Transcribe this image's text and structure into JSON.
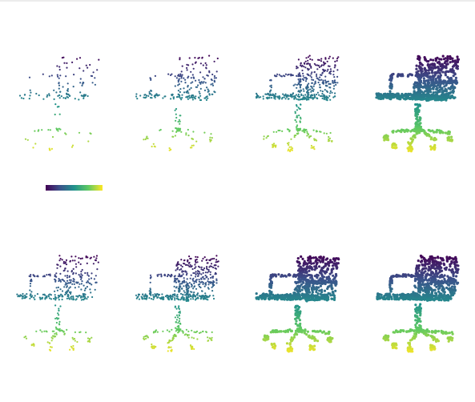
{
  "figure": {
    "description_free": true,
    "colormap": "viridis",
    "colormap_stops": [
      "#440154",
      "#3b528b",
      "#21918c",
      "#5ec962",
      "#fde725"
    ],
    "panels": [
      {
        "id": "row1-col1",
        "density": 0.12,
        "color_mode": "height"
      },
      {
        "id": "row1-col2",
        "density": 0.25,
        "color_mode": "height"
      },
      {
        "id": "row1-col3",
        "density": 0.5,
        "color_mode": "height"
      },
      {
        "id": "row1-col4",
        "density": 1.0,
        "color_mode": "height"
      },
      {
        "id": "row2-col1",
        "density": 0.35,
        "color_mode": "height"
      },
      {
        "id": "row2-col2",
        "density": 0.6,
        "color_mode": "height"
      },
      {
        "id": "row2-col3",
        "density": 0.85,
        "color_mode": "height"
      },
      {
        "id": "row2-col4",
        "density": 1.0,
        "color_mode": "height"
      }
    ]
  }
}
